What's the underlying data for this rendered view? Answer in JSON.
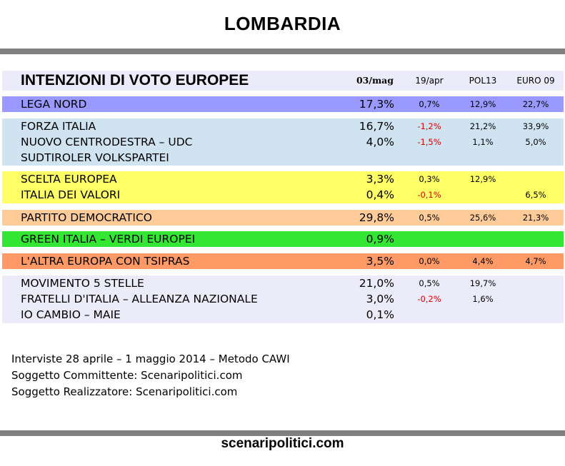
{
  "title": "LOMBARDIA",
  "table_title": "INTENZIONI DI VOTO EUROPEE",
  "columns": [
    "03/mag",
    "19/apr",
    "POL13",
    "EURO 09"
  ],
  "chart_data": {
    "type": "table",
    "title": "INTENZIONI DI VOTO EUROPEE",
    "columns": [
      "03/mag",
      "19/apr",
      "POL13",
      "EURO 09"
    ],
    "groups": [
      {
        "color": "#9999ff",
        "rows": [
          {
            "party": "LEGA NORD",
            "value": "17,3%",
            "delta": "0,7%",
            "pol13": "12,9%",
            "euro09": "22,7%"
          }
        ]
      },
      {
        "color": "#cfe3f1",
        "rows": [
          {
            "party": "FORZA ITALIA",
            "value": "16,7%",
            "delta": "-1,2%",
            "pol13": "21,2%",
            "euro09": "33,9%"
          },
          {
            "party": "NUOVO CENTRODESTRA – UDC",
            "value": "4,0%",
            "delta": "-1,5%",
            "pol13": "1,1%",
            "euro09": "5,0%"
          },
          {
            "party": "SUDTIROLER VOLKSPARTEI",
            "value": "",
            "delta": "",
            "pol13": "",
            "euro09": ""
          }
        ]
      },
      {
        "color": "#ffff66",
        "rows": [
          {
            "party": "SCELTA EUROPEA",
            "value": "3,3%",
            "delta": "0,3%",
            "pol13": "12,9%",
            "euro09": ""
          },
          {
            "party": "ITALIA DEI VALORI",
            "value": "0,4%",
            "delta": "-0,1%",
            "pol13": "",
            "euro09": "6,5%"
          }
        ]
      },
      {
        "color": "#ffcc99",
        "rows": [
          {
            "party": "PARTITO DEMOCRATICO",
            "value": "29,8%",
            "delta": "0,5%",
            "pol13": "25,6%",
            "euro09": "21,3%"
          }
        ]
      },
      {
        "color": "#33e633",
        "rows": [
          {
            "party": "GREEN ITALIA – VERDI EUROPEI",
            "value": "0,9%",
            "delta": "",
            "pol13": "",
            "euro09": ""
          }
        ]
      },
      {
        "color": "#ff9966",
        "rows": [
          {
            "party": "L'ALTRA EUROPA CON TSIPRAS",
            "value": "3,5%",
            "delta": "0,0%",
            "pol13": "4,4%",
            "euro09": "4,7%"
          }
        ]
      },
      {
        "color": "#ebebfa",
        "rows": [
          {
            "party": "MOVIMENTO 5 STELLE",
            "value": "21,0%",
            "delta": "0,5%",
            "pol13": "19,7%",
            "euro09": ""
          },
          {
            "party": "FRATELLI D'ITALIA – ALLEANZA NAZIONALE",
            "value": "3,0%",
            "delta": "-0,2%",
            "pol13": "1,6%",
            "euro09": ""
          },
          {
            "party": "IO CAMBIO – MAIE",
            "value": "0,1%",
            "delta": "",
            "pol13": "",
            "euro09": ""
          }
        ]
      }
    ]
  },
  "notes": [
    "Interviste 28 aprile – 1 maggio 2014 – Metodo CAWI",
    "Soggetto Committente: Scenaripolitici.com",
    "Soggetto Realizzatore: Scenaripolitici.com"
  ],
  "footer": "scenaripolitici.com"
}
